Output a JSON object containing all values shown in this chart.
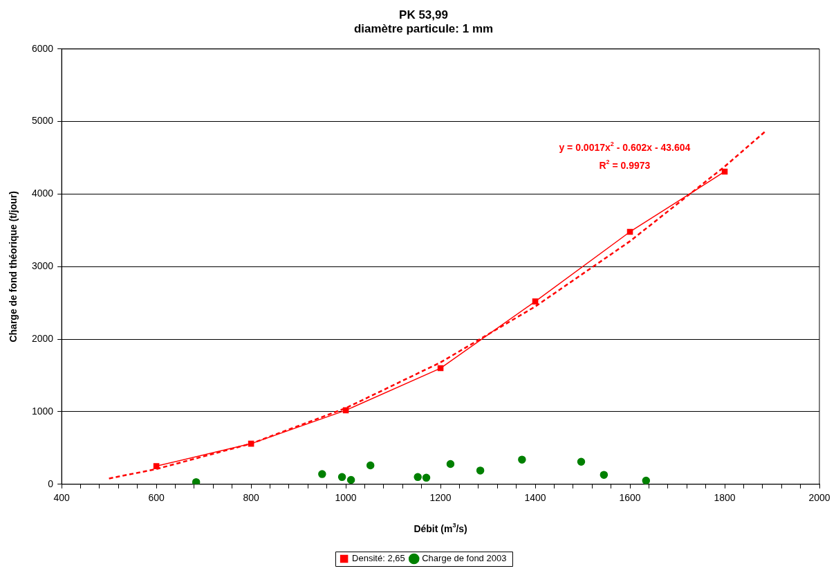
{
  "chart_data": {
    "type": "line",
    "title": [
      "PK 53,99",
      "diamètre particule: 1 mm"
    ],
    "xlabel": "Débit (m$^{3}$/s)",
    "ylabel": "Charge de fond théorique (t/jour)",
    "series": [
      {
        "name": "Densité: 2,65",
        "color": "#ff0000",
        "marker": "square",
        "line_style": "solid",
        "x": [
          600,
          800,
          1000,
          1200,
          1400,
          1600,
          1800
        ],
        "values": [
          250,
          560,
          1020,
          1600,
          2520,
          3480,
          4310
        ]
      },
      {
        "name": "Charge de fond 2003",
        "type": "scatter",
        "color": "#008000",
        "marker": "circle",
        "x": [
          684,
          950,
          992,
          1011,
          1052,
          1152,
          1170,
          1221,
          1284,
          1372,
          1497,
          1545,
          1634
        ],
        "values": [
          30,
          140,
          100,
          60,
          260,
          100,
          90,
          280,
          190,
          340,
          310,
          130,
          50
        ]
      },
      {
        "type": "line",
        "color": "#ff0000",
        "marker": "none",
        "line_style": "dashed",
        "x": [
          500,
          600,
          800,
          1000,
          1200,
          1400,
          1600,
          1800,
          1885
        ],
        "values": [
          80,
          210,
          560,
          1050,
          1680,
          2450,
          3350,
          4380,
          4860
        ]
      }
    ],
    "xlim": [
      400,
      2000
    ],
    "xticks": [
      400,
      {
        "value": 440,
        "label": null
      },
      {
        "value": 480,
        "label": null
      },
      {
        "value": 520,
        "label": null
      },
      {
        "value": 560,
        "label": null
      },
      600,
      {
        "value": 640,
        "label": null
      },
      {
        "value": 680,
        "label": null
      },
      {
        "value": 720,
        "label": null
      },
      {
        "value": 760,
        "label": null
      },
      800,
      {
        "value": 840,
        "label": null
      },
      {
        "value": 880,
        "label": null
      },
      {
        "value": 920,
        "label": null
      },
      {
        "value": 960,
        "label": null
      },
      1000,
      {
        "value": 1040,
        "label": null
      },
      {
        "value": 1080,
        "label": null
      },
      {
        "value": 1120,
        "label": null
      },
      {
        "value": 1160,
        "label": null
      },
      1200,
      {
        "value": 1240,
        "label": null
      },
      {
        "value": 1280,
        "label": null
      },
      {
        "value": 1320,
        "label": null
      },
      {
        "value": 1360,
        "label": null
      },
      1400,
      {
        "value": 1440,
        "label": null
      },
      {
        "value": 1480,
        "label": null
      },
      {
        "value": 1520,
        "label": null
      },
      {
        "value": 1560,
        "label": null
      },
      1600,
      {
        "value": 1640,
        "label": null
      },
      {
        "value": 1680,
        "label": null
      },
      {
        "value": 1720,
        "label": null
      },
      {
        "value": 1760,
        "label": null
      },
      1800,
      {
        "value": 1840,
        "label": null
      },
      {
        "value": 1880,
        "label": null
      },
      {
        "value": 1920,
        "label": null
      },
      {
        "value": 1960,
        "label": null
      },
      2000
    ],
    "ylim": [
      0,
      6000
    ],
    "yticks": [
      0,
      1000,
      2000,
      3000,
      4000,
      5000,
      6000
    ],
    "grid": "y",
    "legend": "bottom",
    "annotations": [
      "y = 0.0017x$^{2}$ - 0.602x - 43.604",
      "R$^{2}$ = 0.9973"
    ]
  }
}
